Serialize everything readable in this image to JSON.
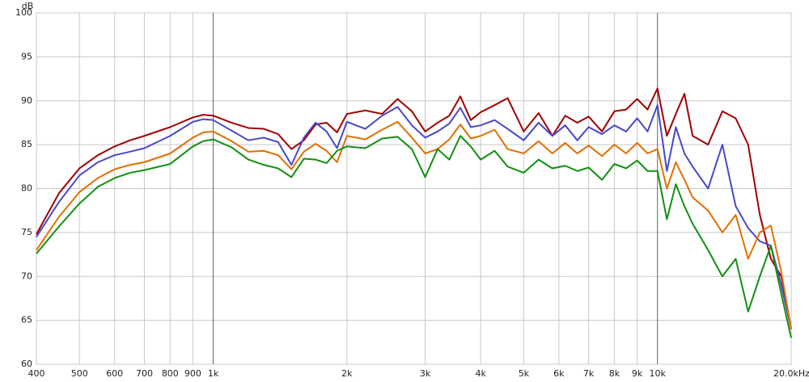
{
  "chart_data": {
    "type": "line",
    "y_unit_label": "dB",
    "log_x": true,
    "grid": true,
    "x": [
      400,
      450,
      500,
      550,
      600,
      650,
      700,
      800,
      900,
      950,
      1000,
      1100,
      1200,
      1300,
      1400,
      1500,
      1600,
      1700,
      1800,
      1900,
      2000,
      2200,
      2400,
      2600,
      2800,
      3000,
      3200,
      3400,
      3600,
      3800,
      4000,
      4300,
      4600,
      5000,
      5400,
      5800,
      6200,
      6600,
      7000,
      7500,
      8000,
      8500,
      9000,
      9500,
      10000,
      10500,
      11000,
      11500,
      12000,
      13000,
      14000,
      15000,
      16000,
      17000,
      18000,
      19000,
      20000
    ],
    "xlim": [
      400,
      20000
    ],
    "xticks": [
      400,
      500,
      600,
      700,
      800,
      900,
      {
        "value": 1000,
        "label": "1k"
      },
      {
        "value": 2000,
        "label": "2k"
      },
      {
        "value": 3000,
        "label": "3k"
      },
      {
        "value": 4000,
        "label": "4k"
      },
      {
        "value": 5000,
        "label": "5k"
      },
      {
        "value": 6000,
        "label": "6k"
      },
      {
        "value": 7000,
        "label": "7k"
      },
      {
        "value": 8000,
        "label": "8k"
      },
      {
        "value": 9000,
        "label": "9k"
      },
      {
        "value": 10000,
        "label": "10k"
      },
      {
        "value": 20000,
        "label": "20.0kHz"
      }
    ],
    "ylim": [
      60,
      100
    ],
    "yticks": [
      60,
      65,
      70,
      75,
      80,
      85,
      90,
      95,
      100
    ],
    "series": [
      {
        "color": "#a00000",
        "values": [
          74.8,
          79.5,
          82.3,
          83.8,
          84.8,
          85.5,
          86,
          87,
          88.1,
          88.4,
          88.3,
          87.5,
          86.9,
          86.8,
          86.2,
          84.5,
          85.5,
          87.3,
          87.5,
          86.4,
          88.5,
          88.9,
          88.5,
          90.2,
          88.8,
          86.5,
          87.5,
          88.3,
          90.5,
          87.8,
          88.7,
          89.5,
          90.3,
          86.5,
          88.6,
          86,
          88.3,
          87.5,
          88.2,
          86.5,
          88.8,
          89,
          90.2,
          89,
          91.4,
          86,
          88.5,
          90.8,
          86,
          85,
          88.8,
          88,
          85,
          77,
          72,
          70,
          64
        ]
      },
      {
        "color": "#4848c8",
        "values": [
          74.5,
          78.5,
          81.5,
          83,
          83.8,
          84.2,
          84.6,
          86,
          87.6,
          87.9,
          87.8,
          86.6,
          85.5,
          85.8,
          85.3,
          82.7,
          85.8,
          87.5,
          86.5,
          84.6,
          87.6,
          86.8,
          88.3,
          89.3,
          87.2,
          85.8,
          86.5,
          87.4,
          89.2,
          87,
          87.2,
          87.8,
          86.8,
          85.5,
          87.5,
          86,
          87.2,
          85.5,
          87,
          86.2,
          87.2,
          86.5,
          88,
          86.5,
          89.5,
          82,
          87,
          84,
          82.5,
          80,
          85,
          78,
          75.5,
          74,
          73.5,
          69,
          64
        ]
      },
      {
        "color": "#e07000",
        "values": [
          73,
          76.8,
          79.6,
          81.2,
          82.2,
          82.7,
          83,
          84,
          85.8,
          86.4,
          86.5,
          85.4,
          84.2,
          84.3,
          83.8,
          82.2,
          84.2,
          85.1,
          84.3,
          83,
          86,
          85.6,
          86.7,
          87.6,
          85.8,
          84,
          84.5,
          85.6,
          87.3,
          85.7,
          86,
          86.7,
          84.5,
          84,
          85.4,
          84,
          85.2,
          84,
          84.9,
          83.7,
          85,
          84,
          85.2,
          84,
          84.5,
          80,
          83,
          81,
          79,
          77.5,
          75,
          77,
          72,
          75,
          75.8,
          70.5,
          64
        ]
      },
      {
        "color": "#109010",
        "values": [
          72.6,
          75.7,
          78.3,
          80.2,
          81.2,
          81.8,
          82.1,
          82.8,
          84.8,
          85.4,
          85.6,
          84.7,
          83.3,
          82.7,
          82.3,
          81.3,
          83.4,
          83.3,
          82.9,
          84.3,
          84.8,
          84.6,
          85.7,
          85.9,
          84.5,
          81.3,
          84.5,
          83.3,
          86,
          84.8,
          83.3,
          84.3,
          82.5,
          81.8,
          83.3,
          82.3,
          82.6,
          82,
          82.4,
          81,
          82.8,
          82.3,
          83.2,
          82,
          82,
          76.5,
          80.5,
          78,
          76,
          73,
          70,
          72,
          66,
          70,
          73.5,
          68,
          63
        ]
      }
    ]
  }
}
